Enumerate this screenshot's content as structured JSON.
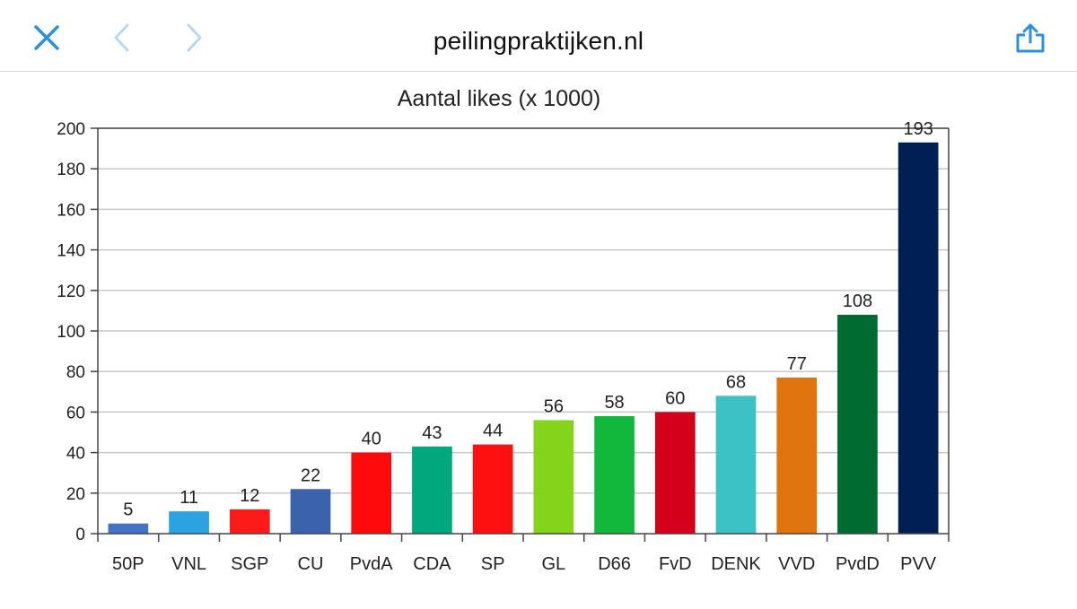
{
  "header": {
    "site": "peilingpraktijken.nl",
    "close_icon": "close-icon",
    "back_icon": "chevron-left-icon",
    "forward_icon": "chevron-right-icon",
    "share_icon": "share-icon",
    "accent_color": "#2d8fe0"
  },
  "chart_data": {
    "type": "bar",
    "title": "Aantal likes (x 1000)",
    "xlabel": "",
    "ylabel": "",
    "ylim": [
      0,
      200
    ],
    "yticks": [
      0,
      20,
      40,
      60,
      80,
      100,
      120,
      140,
      160,
      180,
      200
    ],
    "grid": true,
    "categories": [
      "50P",
      "VNL",
      "SGP",
      "CU",
      "PvdA",
      "CDA",
      "SP",
      "GL",
      "D66",
      "FvD",
      "DENK",
      "VVD",
      "PvdD",
      "PVV"
    ],
    "values": [
      5,
      11,
      12,
      22,
      40,
      43,
      44,
      56,
      58,
      60,
      68,
      77,
      108,
      193
    ],
    "colors": [
      "#4472c4",
      "#2aa3e0",
      "#ff1a1a",
      "#3b63ad",
      "#ff0a0a",
      "#00a87e",
      "#ff1010",
      "#84d41c",
      "#12b83c",
      "#d4001a",
      "#3cc1c4",
      "#e07510",
      "#006b30",
      "#001f52"
    ]
  }
}
